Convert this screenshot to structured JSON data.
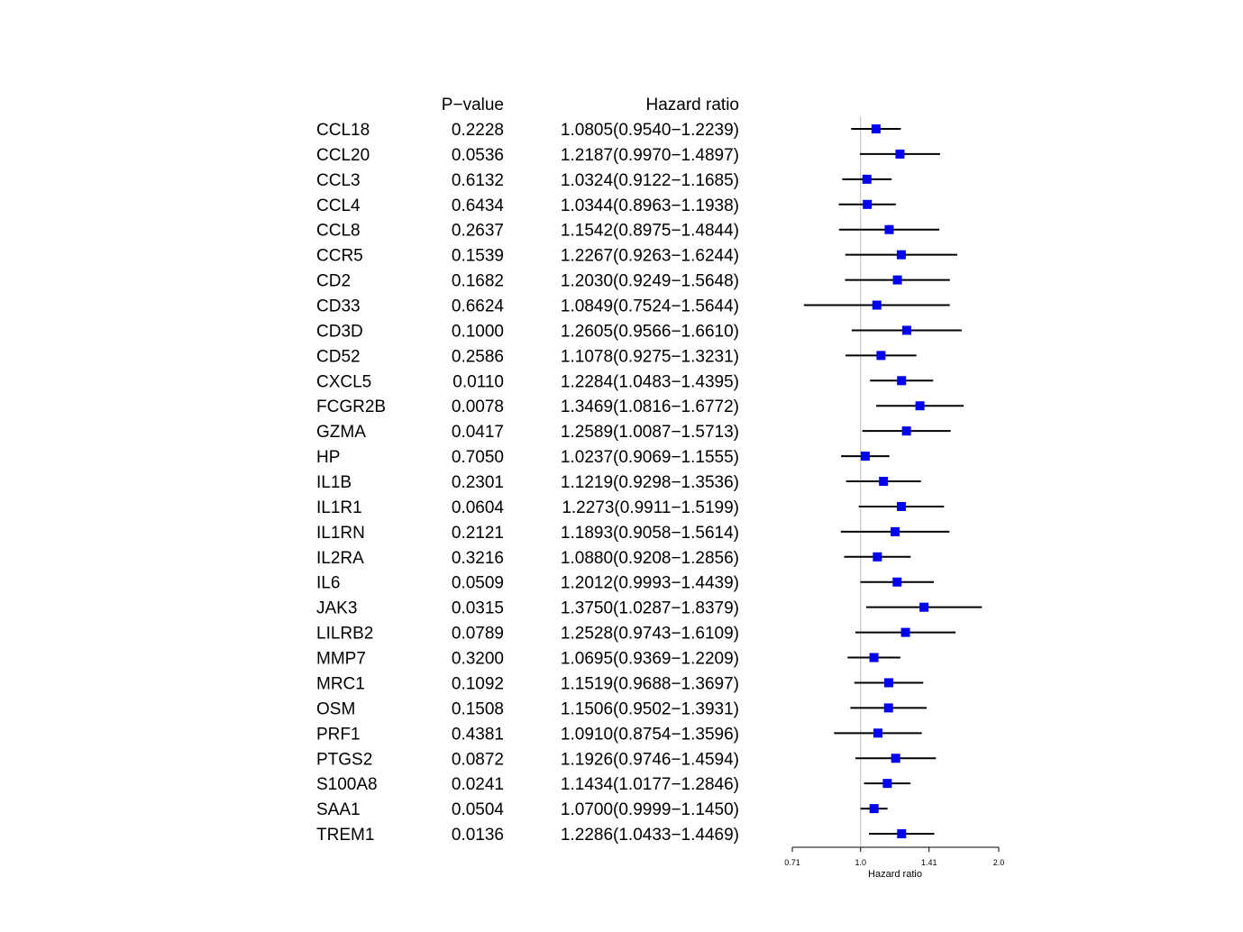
{
  "chart_data": {
    "type": "forest",
    "xscale": "log2",
    "xlabel": "Hazard ratio",
    "xticks": [
      0.71,
      1.0,
      1.41,
      2.0
    ],
    "reference_line": 1.0,
    "columns": {
      "pvalue_header": "P−value",
      "hr_header": "Hazard ratio"
    },
    "marker_color": "#0000ee",
    "rows": [
      {
        "gene": "CCL18",
        "pvalue": "0.2228",
        "hr_text": "1.0805(0.9540−1.2239)",
        "hr": 1.0805,
        "lo": 0.954,
        "hi": 1.2239
      },
      {
        "gene": "CCL20",
        "pvalue": "0.0536",
        "hr_text": "1.2187(0.9970−1.4897)",
        "hr": 1.2187,
        "lo": 0.997,
        "hi": 1.4897
      },
      {
        "gene": "CCL3",
        "pvalue": "0.6132",
        "hr_text": "1.0324(0.9122−1.1685)",
        "hr": 1.0324,
        "lo": 0.9122,
        "hi": 1.1685
      },
      {
        "gene": "CCL4",
        "pvalue": "0.6434",
        "hr_text": "1.0344(0.8963−1.1938)",
        "hr": 1.0344,
        "lo": 0.8963,
        "hi": 1.1938
      },
      {
        "gene": "CCL8",
        "pvalue": "0.2637",
        "hr_text": "1.1542(0.8975−1.4844)",
        "hr": 1.1542,
        "lo": 0.8975,
        "hi": 1.4844
      },
      {
        "gene": "CCR5",
        "pvalue": "0.1539",
        "hr_text": "1.2267(0.9263−1.6244)",
        "hr": 1.2267,
        "lo": 0.9263,
        "hi": 1.6244
      },
      {
        "gene": "CD2",
        "pvalue": "0.1682",
        "hr_text": "1.2030(0.9249−1.5648)",
        "hr": 1.203,
        "lo": 0.9249,
        "hi": 1.5648
      },
      {
        "gene": "CD33",
        "pvalue": "0.6624",
        "hr_text": "1.0849(0.7524−1.5644)",
        "hr": 1.0849,
        "lo": 0.7524,
        "hi": 1.5644
      },
      {
        "gene": "CD3D",
        "pvalue": "0.1000",
        "hr_text": "1.2605(0.9566−1.6610)",
        "hr": 1.2605,
        "lo": 0.9566,
        "hi": 1.661
      },
      {
        "gene": "CD52",
        "pvalue": "0.2586",
        "hr_text": "1.1078(0.9275−1.3231)",
        "hr": 1.1078,
        "lo": 0.9275,
        "hi": 1.3231
      },
      {
        "gene": "CXCL5",
        "pvalue": "0.0110",
        "hr_text": "1.2284(1.0483−1.4395)",
        "hr": 1.2284,
        "lo": 1.0483,
        "hi": 1.4395
      },
      {
        "gene": "FCGR2B",
        "pvalue": "0.0078",
        "hr_text": "1.3469(1.0816−1.6772)",
        "hr": 1.3469,
        "lo": 1.0816,
        "hi": 1.6772
      },
      {
        "gene": "GZMA",
        "pvalue": "0.0417",
        "hr_text": "1.2589(1.0087−1.5713)",
        "hr": 1.2589,
        "lo": 1.0087,
        "hi": 1.5713
      },
      {
        "gene": "HP",
        "pvalue": "0.7050",
        "hr_text": "1.0237(0.9069−1.1555)",
        "hr": 1.0237,
        "lo": 0.9069,
        "hi": 1.1555
      },
      {
        "gene": "IL1B",
        "pvalue": "0.2301",
        "hr_text": "1.1219(0.9298−1.3536)",
        "hr": 1.1219,
        "lo": 0.9298,
        "hi": 1.3536
      },
      {
        "gene": "IL1R1",
        "pvalue": "0.0604",
        "hr_text": "1.2273(0.9911−1.5199)",
        "hr": 1.2273,
        "lo": 0.9911,
        "hi": 1.5199
      },
      {
        "gene": "IL1RN",
        "pvalue": "0.2121",
        "hr_text": "1.1893(0.9058−1.5614)",
        "hr": 1.1893,
        "lo": 0.9058,
        "hi": 1.5614
      },
      {
        "gene": "IL2RA",
        "pvalue": "0.3216",
        "hr_text": "1.0880(0.9208−1.2856)",
        "hr": 1.088,
        "lo": 0.9208,
        "hi": 1.2856
      },
      {
        "gene": "IL6",
        "pvalue": "0.0509",
        "hr_text": "1.2012(0.9993−1.4439)",
        "hr": 1.2012,
        "lo": 0.9993,
        "hi": 1.4439
      },
      {
        "gene": "JAK3",
        "pvalue": "0.0315",
        "hr_text": "1.3750(1.0287−1.8379)",
        "hr": 1.375,
        "lo": 1.0287,
        "hi": 1.8379
      },
      {
        "gene": "LILRB2",
        "pvalue": "0.0789",
        "hr_text": "1.2528(0.9743−1.6109)",
        "hr": 1.2528,
        "lo": 0.9743,
        "hi": 1.6109
      },
      {
        "gene": "MMP7",
        "pvalue": "0.3200",
        "hr_text": "1.0695(0.9369−1.2209)",
        "hr": 1.0695,
        "lo": 0.9369,
        "hi": 1.2209
      },
      {
        "gene": "MRC1",
        "pvalue": "0.1092",
        "hr_text": "1.1519(0.9688−1.3697)",
        "hr": 1.1519,
        "lo": 0.9688,
        "hi": 1.3697
      },
      {
        "gene": "OSM",
        "pvalue": "0.1508",
        "hr_text": "1.1506(0.9502−1.3931)",
        "hr": 1.1506,
        "lo": 0.9502,
        "hi": 1.3931
      },
      {
        "gene": "PRF1",
        "pvalue": "0.4381",
        "hr_text": "1.0910(0.8754−1.3596)",
        "hr": 1.091,
        "lo": 0.8754,
        "hi": 1.3596
      },
      {
        "gene": "PTGS2",
        "pvalue": "0.0872",
        "hr_text": "1.1926(0.9746−1.4594)",
        "hr": 1.1926,
        "lo": 0.9746,
        "hi": 1.4594
      },
      {
        "gene": "S100A8",
        "pvalue": "0.0241",
        "hr_text": "1.1434(1.0177−1.2846)",
        "hr": 1.1434,
        "lo": 1.0177,
        "hi": 1.2846
      },
      {
        "gene": "SAA1",
        "pvalue": "0.0504",
        "hr_text": "1.0700(0.9999−1.1450)",
        "hr": 1.07,
        "lo": 0.9999,
        "hi": 1.145
      },
      {
        "gene": "TREM1",
        "pvalue": "0.0136",
        "hr_text": "1.2286(1.0433−1.4469)",
        "hr": 1.2286,
        "lo": 1.0433,
        "hi": 1.4469
      }
    ]
  }
}
